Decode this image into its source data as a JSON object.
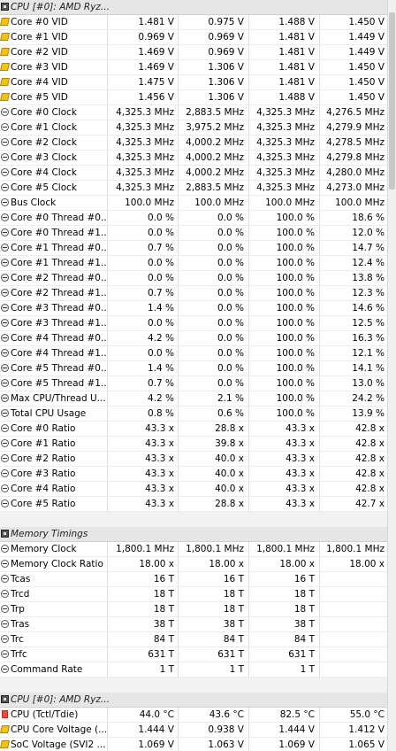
{
  "sections": [
    {
      "title": "CPU [#0]: AMD Ryz...",
      "rows": [
        {
          "icon": "bolt-icon",
          "name": "Core #0 VID",
          "v": [
            "1.481 V",
            "0.975 V",
            "1.488 V",
            "1.450 V"
          ]
        },
        {
          "icon": "bolt-icon",
          "name": "Core #1 VID",
          "v": [
            "0.969 V",
            "0.969 V",
            "1.481 V",
            "1.449 V"
          ]
        },
        {
          "icon": "bolt-icon",
          "name": "Core #2 VID",
          "v": [
            "1.469 V",
            "0.969 V",
            "1.481 V",
            "1.449 V"
          ]
        },
        {
          "icon": "bolt-icon",
          "name": "Core #3 VID",
          "v": [
            "1.469 V",
            "1.306 V",
            "1.481 V",
            "1.450 V"
          ]
        },
        {
          "icon": "bolt-icon",
          "name": "Core #4 VID",
          "v": [
            "1.475 V",
            "1.306 V",
            "1.481 V",
            "1.450 V"
          ]
        },
        {
          "icon": "bolt-icon",
          "name": "Core #5 VID",
          "v": [
            "1.456 V",
            "1.306 V",
            "1.488 V",
            "1.450 V"
          ]
        },
        {
          "icon": "clock-icon",
          "name": "Core #0 Clock",
          "v": [
            "4,325.3 MHz",
            "2,883.5 MHz",
            "4,325.3 MHz",
            "4,276.5 MHz"
          ]
        },
        {
          "icon": "clock-icon",
          "name": "Core #1 Clock",
          "v": [
            "4,325.3 MHz",
            "3,975.2 MHz",
            "4,325.3 MHz",
            "4,279.9 MHz"
          ]
        },
        {
          "icon": "clock-icon",
          "name": "Core #2 Clock",
          "v": [
            "4,325.3 MHz",
            "4,000.2 MHz",
            "4,325.3 MHz",
            "4,278.5 MHz"
          ]
        },
        {
          "icon": "clock-icon",
          "name": "Core #3 Clock",
          "v": [
            "4,325.3 MHz",
            "4,000.2 MHz",
            "4,325.3 MHz",
            "4,279.8 MHz"
          ]
        },
        {
          "icon": "clock-icon",
          "name": "Core #4 Clock",
          "v": [
            "4,325.3 MHz",
            "4,000.2 MHz",
            "4,325.3 MHz",
            "4,280.0 MHz"
          ]
        },
        {
          "icon": "clock-icon",
          "name": "Core #5 Clock",
          "v": [
            "4,325.3 MHz",
            "2,883.5 MHz",
            "4,325.3 MHz",
            "4,273.0 MHz"
          ]
        },
        {
          "icon": "clock-icon",
          "name": "Bus Clock",
          "v": [
            "100.0 MHz",
            "100.0 MHz",
            "100.0 MHz",
            "100.0 MHz"
          ]
        },
        {
          "icon": "gauge-icon",
          "name": "Core #0 Thread #0...",
          "v": [
            "0.0 %",
            "0.0 %",
            "100.0 %",
            "18.6 %"
          ]
        },
        {
          "icon": "gauge-icon",
          "name": "Core #0 Thread #1...",
          "v": [
            "0.0 %",
            "0.0 %",
            "100.0 %",
            "12.0 %"
          ]
        },
        {
          "icon": "gauge-icon",
          "name": "Core #1 Thread #0...",
          "v": [
            "0.7 %",
            "0.0 %",
            "100.0 %",
            "14.7 %"
          ]
        },
        {
          "icon": "gauge-icon",
          "name": "Core #1 Thread #1...",
          "v": [
            "0.0 %",
            "0.0 %",
            "100.0 %",
            "12.4 %"
          ]
        },
        {
          "icon": "gauge-icon",
          "name": "Core #2 Thread #0...",
          "v": [
            "0.0 %",
            "0.0 %",
            "100.0 %",
            "13.8 %"
          ]
        },
        {
          "icon": "gauge-icon",
          "name": "Core #2 Thread #1...",
          "v": [
            "0.7 %",
            "0.0 %",
            "100.0 %",
            "12.3 %"
          ]
        },
        {
          "icon": "gauge-icon",
          "name": "Core #3 Thread #0...",
          "v": [
            "1.4 %",
            "0.0 %",
            "100.0 %",
            "14.6 %"
          ]
        },
        {
          "icon": "gauge-icon",
          "name": "Core #3 Thread #1...",
          "v": [
            "0.0 %",
            "0.0 %",
            "100.0 %",
            "12.5 %"
          ]
        },
        {
          "icon": "gauge-icon",
          "name": "Core #4 Thread #0...",
          "v": [
            "4.2 %",
            "0.0 %",
            "100.0 %",
            "16.3 %"
          ]
        },
        {
          "icon": "gauge-icon",
          "name": "Core #4 Thread #1...",
          "v": [
            "0.0 %",
            "0.0 %",
            "100.0 %",
            "12.1 %"
          ]
        },
        {
          "icon": "gauge-icon",
          "name": "Core #5 Thread #0...",
          "v": [
            "1.4 %",
            "0.0 %",
            "100.0 %",
            "14.1 %"
          ]
        },
        {
          "icon": "gauge-icon",
          "name": "Core #5 Thread #1...",
          "v": [
            "0.7 %",
            "0.0 %",
            "100.0 %",
            "13.0 %"
          ]
        },
        {
          "icon": "gauge-icon",
          "name": "Max CPU/Thread U...",
          "v": [
            "4.2 %",
            "2.1 %",
            "100.0 %",
            "24.2 %"
          ]
        },
        {
          "icon": "gauge-icon",
          "name": "Total CPU Usage",
          "v": [
            "0.8 %",
            "0.6 %",
            "100.0 %",
            "13.9 %"
          ]
        },
        {
          "icon": "clock-icon",
          "name": "Core #0 Ratio",
          "v": [
            "43.3 x",
            "28.8 x",
            "43.3 x",
            "42.8 x"
          ]
        },
        {
          "icon": "clock-icon",
          "name": "Core #1 Ratio",
          "v": [
            "43.3 x",
            "39.8 x",
            "43.3 x",
            "42.8 x"
          ]
        },
        {
          "icon": "clock-icon",
          "name": "Core #2 Ratio",
          "v": [
            "43.3 x",
            "40.0 x",
            "43.3 x",
            "42.8 x"
          ]
        },
        {
          "icon": "clock-icon",
          "name": "Core #3 Ratio",
          "v": [
            "43.3 x",
            "40.0 x",
            "43.3 x",
            "42.8 x"
          ]
        },
        {
          "icon": "clock-icon",
          "name": "Core #4 Ratio",
          "v": [
            "43.3 x",
            "40.0 x",
            "43.3 x",
            "42.8 x"
          ]
        },
        {
          "icon": "clock-icon",
          "name": "Core #5 Ratio",
          "v": [
            "43.3 x",
            "28.8 x",
            "43.3 x",
            "42.7 x"
          ]
        }
      ]
    },
    {
      "title": "Memory Timings",
      "rows": [
        {
          "icon": "clock-icon",
          "name": "Memory Clock",
          "v": [
            "1,800.1 MHz",
            "1,800.1 MHz",
            "1,800.1 MHz",
            "1,800.1 MHz"
          ]
        },
        {
          "icon": "clock-icon",
          "name": "Memory Clock Ratio",
          "v": [
            "18.00 x",
            "18.00 x",
            "18.00 x",
            "18.00 x"
          ]
        },
        {
          "icon": "clock-icon",
          "name": "Tcas",
          "v": [
            "16 T",
            "16 T",
            "16 T",
            ""
          ]
        },
        {
          "icon": "clock-icon",
          "name": "Trcd",
          "v": [
            "18 T",
            "18 T",
            "18 T",
            ""
          ]
        },
        {
          "icon": "clock-icon",
          "name": "Trp",
          "v": [
            "18 T",
            "18 T",
            "18 T",
            ""
          ]
        },
        {
          "icon": "clock-icon",
          "name": "Tras",
          "v": [
            "38 T",
            "38 T",
            "38 T",
            ""
          ]
        },
        {
          "icon": "clock-icon",
          "name": "Trc",
          "v": [
            "84 T",
            "84 T",
            "84 T",
            ""
          ]
        },
        {
          "icon": "clock-icon",
          "name": "Trfc",
          "v": [
            "631 T",
            "631 T",
            "631 T",
            ""
          ]
        },
        {
          "icon": "clock-icon",
          "name": "Command Rate",
          "v": [
            "1 T",
            "1 T",
            "1 T",
            ""
          ]
        }
      ]
    },
    {
      "title": "CPU [#0]: AMD Ryz...",
      "rows": [
        {
          "icon": "thermometer-icon",
          "name": "CPU (Tctl/Tdie)",
          "v": [
            "44.0 °C",
            "43.6 °C",
            "82.5 °C",
            "55.0 °C"
          ]
        },
        {
          "icon": "bolt-icon",
          "name": "CPU Core Voltage (...",
          "v": [
            "1.444 V",
            "0.938 V",
            "1.444 V",
            "1.412 V"
          ]
        },
        {
          "icon": "bolt-icon",
          "name": "SoC Voltage (SVI2 ...",
          "v": [
            "1.069 V",
            "1.063 V",
            "1.069 V",
            "1.065 V"
          ]
        }
      ]
    }
  ]
}
